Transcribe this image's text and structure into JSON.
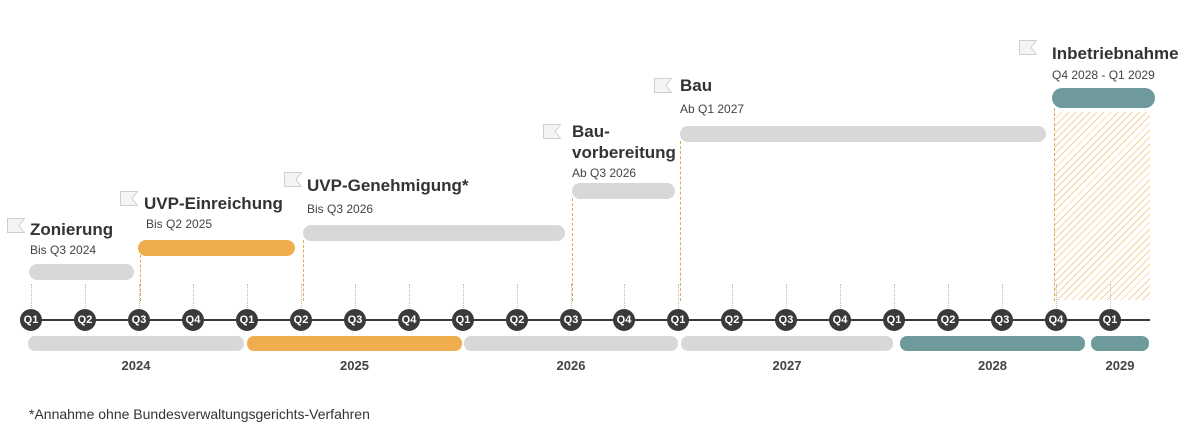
{
  "colors": {
    "gray": "#d8d8d8",
    "orange": "#f0ad4e",
    "teal": "#6e9a9c",
    "axis": "#3a3a3a"
  },
  "phases": [
    {
      "id": "zonierung",
      "title": "Zonierung",
      "subtitle": "Bis Q3 2024",
      "color": "gray"
    },
    {
      "id": "uvp-einreichung",
      "title": "UVP-Einreichung",
      "subtitle": "Bis Q2 2025",
      "color": "orange"
    },
    {
      "id": "uvp-genehmigung",
      "title": "UVP-Genehmigung*",
      "subtitle": "Bis Q3 2026",
      "color": "gray"
    },
    {
      "id": "bauvorbereitung",
      "title": "Bau-\nvorbereitung",
      "subtitle": "Ab Q3 2026",
      "color": "gray"
    },
    {
      "id": "bau",
      "title": "Bau",
      "subtitle": "Ab Q1 2027",
      "color": "gray"
    },
    {
      "id": "inbetriebnahme",
      "title": "Inbetriebnahme",
      "subtitle": "Q4 2028 - Q1 2029",
      "color": "teal"
    }
  ],
  "quarters": [
    "Q1",
    "Q2",
    "Q3",
    "Q4",
    "Q1",
    "Q2",
    "Q3",
    "Q4",
    "Q1",
    "Q2",
    "Q3",
    "Q4",
    "Q1",
    "Q2",
    "Q3",
    "Q4",
    "Q1",
    "Q2",
    "Q3",
    "Q4",
    "Q1"
  ],
  "years": [
    {
      "label": "2024",
      "color": "gray"
    },
    {
      "label": "2025",
      "color": "orange"
    },
    {
      "label": "2026",
      "color": "gray"
    },
    {
      "label": "2027",
      "color": "gray"
    },
    {
      "label": "2028",
      "color": "teal"
    },
    {
      "label": "2029",
      "color": "teal"
    }
  ],
  "footnote": "*Annahme ohne Bundesverwaltungsgerichts-Verfahren"
}
